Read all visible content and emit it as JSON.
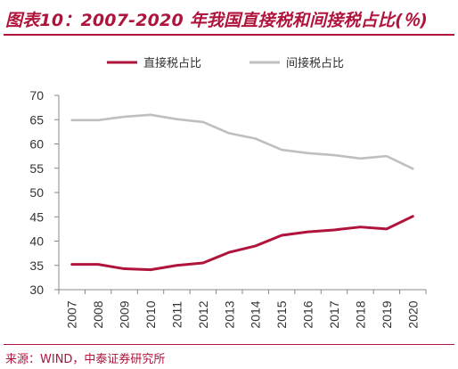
{
  "title": "图表10：2007-2020 年我国直接税和间接税占比(％)",
  "source": "来源：WIND，中泰证券研究所",
  "colors": {
    "accent": "#b0143c",
    "direct": "#b0143c",
    "indirect": "#bfbfbf",
    "axis": "#888888"
  },
  "chart_data": {
    "type": "line",
    "x": [
      "2007",
      "2008",
      "2009",
      "2010",
      "2011",
      "2012",
      "2013",
      "2014",
      "2015",
      "2016",
      "2017",
      "2018",
      "2019",
      "2020"
    ],
    "ylim": [
      30,
      70
    ],
    "yticks": [
      30,
      35,
      40,
      45,
      50,
      55,
      60,
      65,
      70
    ],
    "grid": false,
    "legend_position": "top",
    "series": [
      {
        "name": "直接税占比",
        "color": "#b0143c",
        "values": [
          35.2,
          35.2,
          34.3,
          34.1,
          35.0,
          35.5,
          37.7,
          39.0,
          41.2,
          41.9,
          42.3,
          42.9,
          42.5,
          45.1
        ]
      },
      {
        "name": "间接税占比",
        "color": "#bfbfbf",
        "values": [
          64.9,
          64.9,
          65.6,
          66.0,
          65.1,
          64.5,
          62.2,
          61.1,
          58.8,
          58.1,
          57.7,
          57.0,
          57.5,
          54.9
        ]
      }
    ]
  }
}
